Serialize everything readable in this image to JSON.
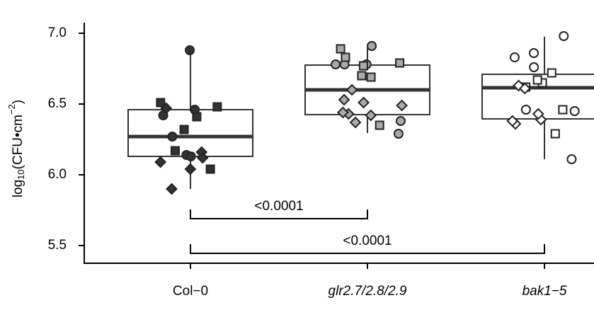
{
  "chart_data": {
    "type": "box",
    "y_label": {
      "base": "log",
      "sub": "10",
      "mid": "(CFU•cm",
      "sup": "−2",
      "end": ")"
    },
    "categories": [
      "Col−0",
      "glr2.7/2.8/2.9",
      "bak1−5"
    ],
    "italic": [
      false,
      true,
      true
    ],
    "ylim": [
      5.375,
      7.075
    ],
    "yticks": [
      {
        "value": 5.5,
        "label": "5.5"
      },
      {
        "value": 6,
        "label": "6.0"
      },
      {
        "value": 6.5,
        "label": "6.5"
      },
      {
        "value": 7,
        "label": "7.0"
      }
    ],
    "boxes": [
      {
        "low": 5.9,
        "q1": 6.13,
        "median": 6.27,
        "q3": 6.46,
        "high": 6.875
      },
      {
        "low": 6.295,
        "q1": 6.425,
        "median": 6.6,
        "q3": 6.775,
        "high": 6.9
      },
      {
        "low": 6.11,
        "q1": 6.395,
        "median": 6.615,
        "q3": 6.71,
        "high": 6.975
      }
    ],
    "point_colors": [
      "#333333",
      "#aaaaaa",
      "#ffffff"
    ],
    "points": [
      {
        "circle": [
          6.88,
          6.46,
          6.42,
          6.27,
          6.14,
          6.13
        ],
        "square": [
          6.51,
          6.48,
          6.41,
          6.32,
          6.17,
          6.04
        ],
        "diamond": [
          6.16,
          6.09,
          6.04,
          5.9,
          6.12,
          6.47
        ]
      },
      {
        "circle": [
          6.91,
          6.78,
          6.78,
          6.78,
          6.29,
          6.38
        ],
        "square": [
          6.89,
          6.77,
          6.79,
          6.83,
          6.7,
          6.69,
          6.35
        ],
        "diamond": [
          6.6,
          6.53,
          6.49,
          6.51,
          6.43,
          6.42,
          6.37,
          6.44
        ]
      },
      {
        "circle": [
          6.98,
          6.76,
          6.86,
          6.83,
          6.45,
          6.46,
          6.11
        ],
        "square": [
          6.65,
          6.62,
          6.72,
          6.67,
          6.46,
          6.29
        ],
        "diamond": [
          6.63,
          6.61,
          6.39,
          6.36,
          6.38,
          6.43
        ]
      }
    ],
    "comparisons": [
      {
        "from": 0,
        "to": 1,
        "label": "<0.0001"
      },
      {
        "from": 0,
        "to": 2,
        "label": "<0.0001"
      }
    ]
  }
}
